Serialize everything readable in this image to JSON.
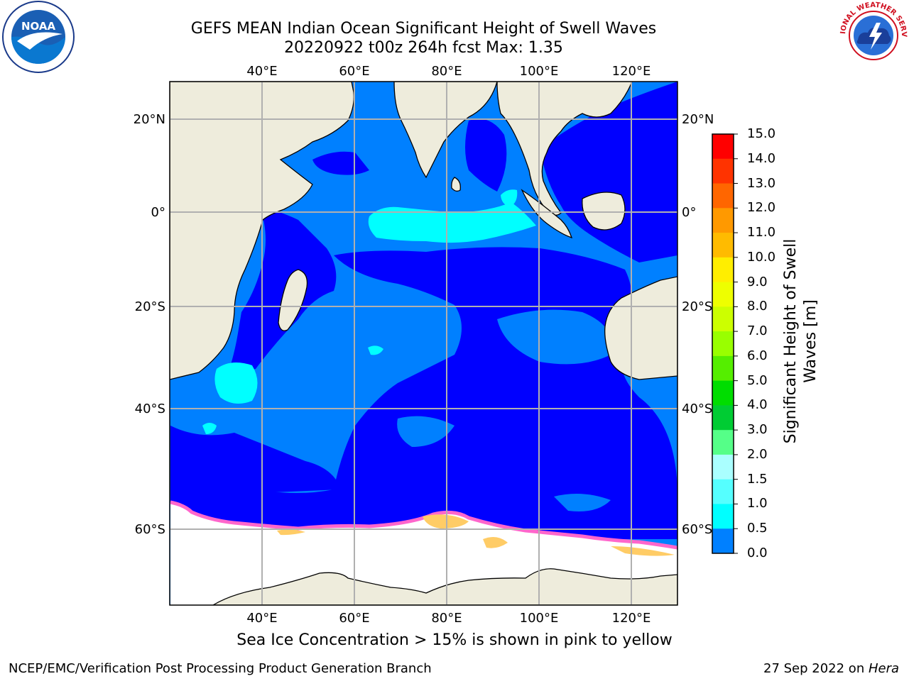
{
  "title": {
    "line1": "GEFS MEAN Indian Ocean Significant Height of Swell Waves",
    "line2": "20220922 t00z 264h fcst   Max: 1.35"
  },
  "logos": {
    "left": {
      "icon": "noaa-logo",
      "text": "NOAA"
    },
    "right": {
      "icon": "nws-logo",
      "text": "NATIONAL WEATHER SERVICE"
    }
  },
  "map": {
    "lon_labels": [
      "40°E",
      "60°E",
      "80°E",
      "100°E",
      "120°E"
    ],
    "lat_labels": [
      "20°N",
      "0°",
      "20°S",
      "40°S",
      "60°S"
    ],
    "colors": {
      "land": "#eeecdc",
      "swell_0_05": "#0000ff",
      "swell_05_10": "#0080ff",
      "swell_10_15": "#00ffff",
      "sea_ice_pink": "#ff66cc",
      "sea_ice_yellow": "#ffcc66",
      "grid": "#b0b0b0"
    }
  },
  "colorbar": {
    "title_line1": "Significant Height of Swell",
    "title_line2": "Waves [m]",
    "labels": [
      "15.0",
      "14.0",
      "13.0",
      "12.0",
      "11.0",
      "10.0",
      "9.0",
      "8.0",
      "7.0",
      "6.0",
      "5.0",
      "4.0",
      "3.0",
      "2.0",
      "1.5",
      "1.0",
      "0.5",
      "0.0"
    ],
    "colors": [
      "#ff0000",
      "#ff3300",
      "#ff6600",
      "#ff9900",
      "#ffbb00",
      "#ffee00",
      "#eeff00",
      "#ccff00",
      "#99ff00",
      "#55ee00",
      "#00dd00",
      "#00cc33",
      "#55ff88",
      "#aaffff",
      "#55ffff",
      "#00ffff",
      "#0080ff",
      "#0000ff"
    ]
  },
  "note": "Sea Ice Concentration > 15% is shown in pink to yellow",
  "footer": {
    "left": "NCEP/EMC/Verification Post Processing Product Generation Branch",
    "right_prefix": "27 Sep 2022 on ",
    "right_host": "Hera"
  }
}
